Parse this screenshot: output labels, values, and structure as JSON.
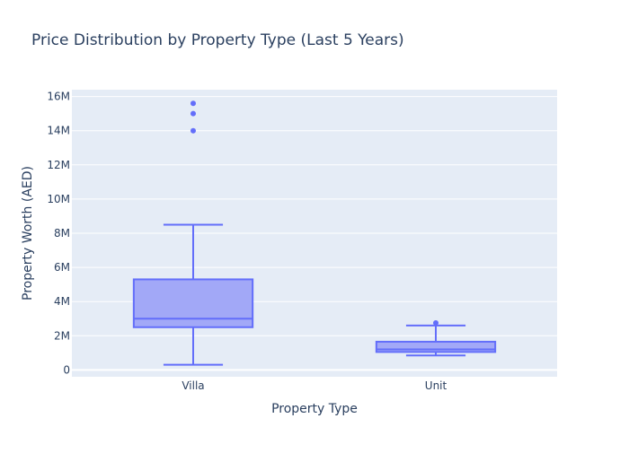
{
  "colors": {
    "plot_bg": "#e5ecf6",
    "grid": "#ffffff",
    "box_line": "#636efa",
    "box_fill": "#a2a8f7",
    "text": "#2a3f5f"
  },
  "chart_data": {
    "type": "box",
    "title": "Price Distribution by Property Type (Last 5 Years)",
    "xlabel": "Property Type",
    "ylabel": "Property Worth (AED)",
    "ylim": [
      -0.4,
      16.4
    ],
    "y_unit_multiplier": 1000000,
    "yticks": [
      0,
      2,
      4,
      6,
      8,
      10,
      12,
      14,
      16
    ],
    "ytick_labels": [
      "0",
      "2M",
      "4M",
      "6M",
      "8M",
      "10M",
      "12M",
      "14M",
      "16M"
    ],
    "grid": true,
    "categories": [
      "Villa",
      "Unit"
    ],
    "boxes": [
      {
        "category": "Villa",
        "min": 0.3,
        "q1": 2.5,
        "median": 3.0,
        "q3": 5.3,
        "max": 8.5,
        "outliers": [
          14.0,
          15.0,
          15.6
        ]
      },
      {
        "category": "Unit",
        "min": 0.85,
        "q1": 1.05,
        "median": 1.2,
        "q3": 1.65,
        "max": 2.6,
        "outliers": [
          2.75
        ]
      }
    ]
  }
}
